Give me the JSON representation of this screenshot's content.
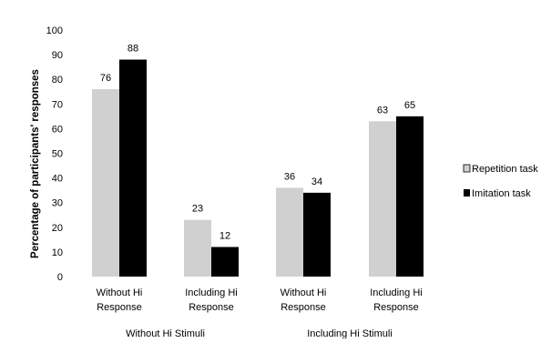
{
  "chart_data": {
    "type": "bar",
    "title": "",
    "ylabel": "Percentage of participants' responses",
    "xlabel": "",
    "ylim": [
      0,
      100
    ],
    "yticks": [
      0,
      10,
      20,
      30,
      40,
      50,
      60,
      70,
      80,
      90,
      100
    ],
    "grid": false,
    "legend_position": "right",
    "categories": [
      [
        "Without Hi",
        "Response"
      ],
      [
        "Including Hi",
        "Response"
      ],
      [
        "Without Hi",
        "Response"
      ],
      [
        "Including Hi",
        "Response"
      ]
    ],
    "groups": [
      {
        "label": "Without Hi Stimuli",
        "categories": [
          0,
          1
        ]
      },
      {
        "label": "Including Hi Stimuli",
        "categories": [
          2,
          3
        ]
      }
    ],
    "series": [
      {
        "name": "Repetition task",
        "color": "#d0d0d0",
        "values": [
          76,
          23,
          36,
          63
        ]
      },
      {
        "name": "Imitation task",
        "color": "#000000",
        "values": [
          88,
          12,
          34,
          65
        ]
      }
    ]
  }
}
